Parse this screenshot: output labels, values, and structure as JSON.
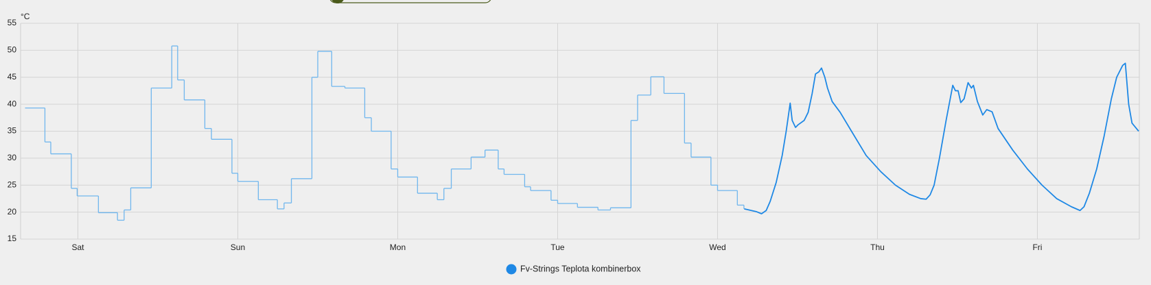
{
  "chart_data": {
    "type": "line",
    "y_label": "°C",
    "xlim": [
      -8.6,
      159.3
    ],
    "xticks": [
      {
        "value": 0,
        "label": "Sat"
      },
      {
        "value": 24,
        "label": "Sun"
      },
      {
        "value": 48,
        "label": "Mon"
      },
      {
        "value": 72,
        "label": "Tue"
      },
      {
        "value": 96,
        "label": "Wed"
      },
      {
        "value": 120,
        "label": "Thu"
      },
      {
        "value": 144,
        "label": "Fri"
      }
    ],
    "ylim": [
      15,
      55
    ],
    "yticks": [
      15,
      20,
      25,
      30,
      35,
      40,
      45,
      50,
      55
    ],
    "grid": true,
    "series": [
      {
        "name": "Fv-Strings Teplota kombinerbox",
        "color": "#1e88e5",
        "x": [
          100.0,
          101.8,
          102.6,
          103.3,
          103.9,
          104.8,
          105.7,
          106.3,
          106.9,
          107.2,
          107.7,
          108.1,
          109.0,
          109.6,
          110.2,
          110.7,
          111.2,
          111.6,
          112.1,
          112.5,
          113.2,
          114.4,
          116.1,
          118.3,
          120.5,
          122.7,
          124.8,
          126.5,
          127.3,
          127.9,
          128.5,
          129.3,
          130.3,
          131.3,
          131.7,
          132.1,
          132.5,
          133.0,
          133.6,
          134.1,
          134.4,
          135.0,
          135.8,
          136.4,
          137.2,
          138.1,
          140.3,
          142.5,
          144.7,
          146.9,
          149.1,
          150.4,
          151.0,
          151.8,
          152.9,
          154.0,
          155.1,
          155.9,
          156.8,
          157.2,
          157.7,
          158.2,
          159.2
        ],
        "values": [
          20.6,
          20.1,
          19.7,
          20.3,
          22,
          25.5,
          30.5,
          35,
          40.2,
          37,
          35.7,
          36.2,
          37,
          38.5,
          42,
          45.6,
          46,
          46.7,
          45,
          43,
          40.5,
          38.5,
          35,
          30.5,
          27.5,
          25,
          23.3,
          22.5,
          22.4,
          23.2,
          25,
          30,
          37,
          43.5,
          42.5,
          42.5,
          40.3,
          41,
          44,
          43,
          43.5,
          40.5,
          38,
          39,
          38.6,
          35.5,
          31.5,
          28,
          25,
          22.5,
          21,
          20.3,
          21,
          23.5,
          28,
          34,
          41,
          45,
          47.2,
          47.6,
          40,
          36.5,
          35
        ]
      },
      {
        "color": "#6fb6ee",
        "step": true,
        "x": [
          -7.93,
          -4.95,
          -4.07,
          -0.99,
          -0.11,
          3.08,
          5.94,
          6.94,
          7.93,
          11.01,
          14.09,
          14.97,
          15.96,
          19.05,
          20.04,
          23.12,
          24.0,
          27.08,
          29.94,
          30.94,
          32.04,
          35.12,
          36.0,
          38.09,
          40.07,
          43.05,
          44.04,
          47.01,
          48.0,
          50.97,
          53.94,
          54.93,
          56.04,
          59.01,
          61.1,
          63.08,
          63.96,
          67.05,
          67.94,
          71.01,
          72.0,
          74.97,
          78.05,
          79.93,
          83.01,
          84.0,
          85.98,
          87.96,
          91.04,
          92.03,
          95.01,
          96.0,
          98.97,
          99.96
        ],
        "values": [
          39.3,
          33,
          30.8,
          24.4,
          23,
          19.9,
          18.5,
          20.4,
          24.5,
          43,
          50.8,
          44.5,
          40.8,
          35.5,
          33.5,
          27.2,
          25.7,
          22.3,
          20.6,
          21.7,
          26.2,
          45,
          49.8,
          43.3,
          43,
          37.5,
          35,
          28,
          26.5,
          23.5,
          22.3,
          24.4,
          28,
          30.2,
          31.5,
          28,
          27,
          24.7,
          24,
          22.2,
          21.6,
          20.9,
          20.4,
          20.8,
          37,
          41.7,
          45.1,
          42,
          32.8,
          30.2,
          25,
          24,
          21.3,
          20.6
        ]
      }
    ]
  }
}
